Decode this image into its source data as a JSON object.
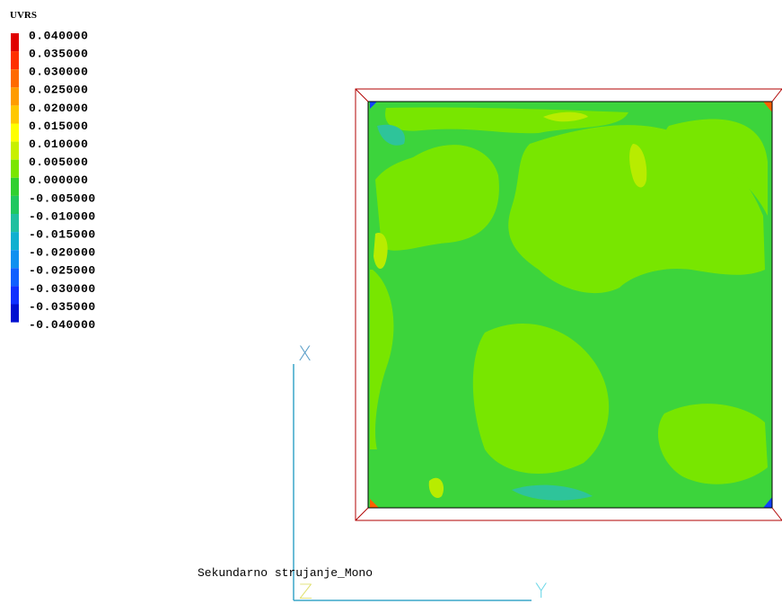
{
  "legend": {
    "title": "UVRS",
    "labels": [
      "0.040000",
      "0.035000",
      "0.030000",
      "0.025000",
      "0.020000",
      "0.015000",
      "0.010000",
      "0.005000",
      "0.000000",
      "-0.005000",
      "-0.010000",
      "-0.015000",
      "-0.020000",
      "-0.025000",
      "-0.030000",
      "-0.035000",
      "-0.040000"
    ]
  },
  "caption": "Sekundarno strujanje_Mono",
  "axes": {
    "x": "X",
    "y": "Y",
    "z": "Z"
  }
}
